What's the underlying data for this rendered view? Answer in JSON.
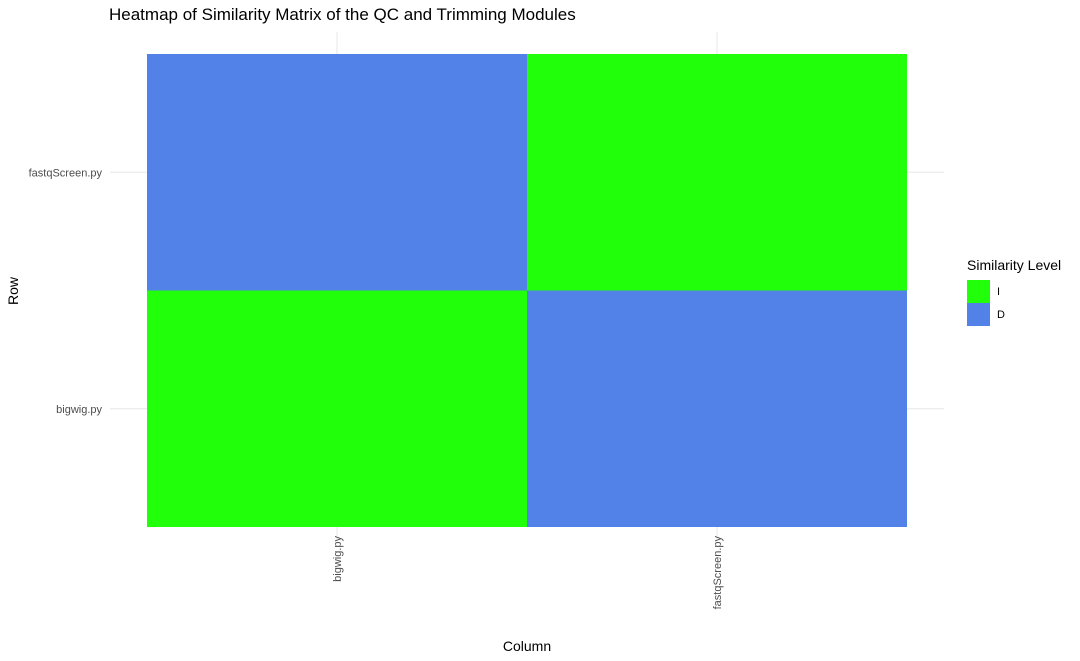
{
  "chart_data": {
    "type": "heatmap",
    "title": "Heatmap of Similarity Matrix of the QC and Trimming Modules",
    "xlabel": "Column",
    "ylabel": "Row",
    "x_categories": [
      "bigwig.py",
      "fastqScreen.py"
    ],
    "y_categories": [
      "bigwig.py",
      "fastqScreen.py"
    ],
    "cells": [
      {
        "row": "bigwig.py",
        "column": "bigwig.py",
        "level": "I"
      },
      {
        "row": "bigwig.py",
        "column": "fastqScreen.py",
        "level": "D"
      },
      {
        "row": "fastqScreen.py",
        "column": "bigwig.py",
        "level": "D"
      },
      {
        "row": "fastqScreen.py",
        "column": "fastqScreen.py",
        "level": "I"
      }
    ],
    "legend": {
      "title": "Similarity Level",
      "position": "right",
      "items": [
        {
          "label": "I",
          "color": "#22ff0a"
        },
        {
          "label": "D",
          "color": "#5281e8"
        }
      ]
    },
    "grid": true
  }
}
